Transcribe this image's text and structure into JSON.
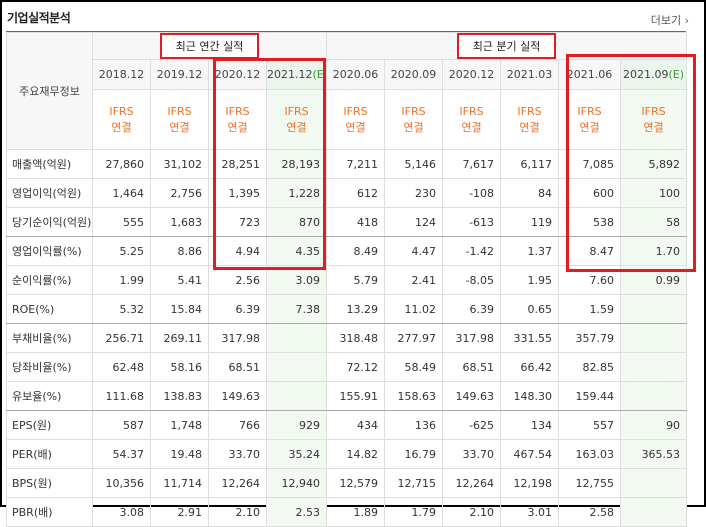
{
  "header": {
    "title": "기업실적분석",
    "more_label": "더보기"
  },
  "table": {
    "corner_label": "주요재무정보",
    "groups": [
      {
        "label": "최근 연간 실적",
        "span": 4
      },
      {
        "label": "최근 분기 실적",
        "span": 6
      }
    ],
    "periods": [
      {
        "label": "2018.12",
        "est": ""
      },
      {
        "label": "2019.12",
        "est": ""
      },
      {
        "label": "2020.12",
        "est": ""
      },
      {
        "label": "2021.12",
        "est": "(E)"
      },
      {
        "label": "2020.06",
        "est": ""
      },
      {
        "label": "2020.09",
        "est": ""
      },
      {
        "label": "2020.12",
        "est": ""
      },
      {
        "label": "2021.03",
        "est": ""
      },
      {
        "label": "2021.06",
        "est": ""
      },
      {
        "label": "2021.09",
        "est": "(E)"
      }
    ],
    "ifrs_label": "IFRS",
    "consol_label": "연결",
    "rows": [
      {
        "label": "매출액(억원)",
        "values": [
          "27,860",
          "31,102",
          "28,251",
          "28,193",
          "7,211",
          "5,146",
          "7,617",
          "6,117",
          "7,085",
          "5,892"
        ],
        "end": false
      },
      {
        "label": "영업이익(억원)",
        "values": [
          "1,464",
          "2,756",
          "1,395",
          "1,228",
          "612",
          "230",
          "-108",
          "84",
          "600",
          "100"
        ],
        "end": false
      },
      {
        "label": "당기순이익(억원)",
        "values": [
          "555",
          "1,683",
          "723",
          "870",
          "418",
          "124",
          "-613",
          "119",
          "538",
          "58"
        ],
        "end": true
      },
      {
        "label": "영업이익률(%)",
        "values": [
          "5.25",
          "8.86",
          "4.94",
          "4.35",
          "8.49",
          "4.47",
          "-1.42",
          "1.37",
          "8.47",
          "1.70"
        ],
        "end": false
      },
      {
        "label": "순이익률(%)",
        "values": [
          "1.99",
          "5.41",
          "2.56",
          "3.09",
          "5.79",
          "2.41",
          "-8.05",
          "1.95",
          "7.60",
          "0.99"
        ],
        "end": false
      },
      {
        "label": "ROE(%)",
        "values": [
          "5.32",
          "15.84",
          "6.39",
          "7.38",
          "13.29",
          "11.02",
          "6.39",
          "0.65",
          "1.59",
          ""
        ],
        "end": true
      },
      {
        "label": "부채비율(%)",
        "values": [
          "256.71",
          "269.11",
          "317.98",
          "",
          "318.48",
          "277.97",
          "317.98",
          "331.55",
          "357.79",
          ""
        ],
        "end": false
      },
      {
        "label": "당좌비율(%)",
        "values": [
          "62.48",
          "58.16",
          "68.51",
          "",
          "72.12",
          "58.49",
          "68.51",
          "66.42",
          "82.85",
          ""
        ],
        "end": false
      },
      {
        "label": "유보율(%)",
        "values": [
          "111.68",
          "138.83",
          "149.63",
          "",
          "155.91",
          "158.63",
          "149.63",
          "148.30",
          "159.44",
          ""
        ],
        "end": true
      },
      {
        "label": "EPS(원)",
        "values": [
          "587",
          "1,748",
          "766",
          "929",
          "434",
          "136",
          "-625",
          "134",
          "557",
          "90"
        ],
        "end": false
      },
      {
        "label": "PER(배)",
        "values": [
          "54.37",
          "19.48",
          "33.70",
          "35.24",
          "14.82",
          "16.79",
          "33.70",
          "467.54",
          "163.03",
          "365.53"
        ],
        "end": false
      },
      {
        "label": "BPS(원)",
        "values": [
          "10,356",
          "11,714",
          "12,264",
          "12,940",
          "12,579",
          "12,715",
          "12,264",
          "12,198",
          "12,755",
          ""
        ],
        "end": false
      },
      {
        "label": "PBR(배)",
        "values": [
          "3.08",
          "2.91",
          "2.10",
          "2.53",
          "1.89",
          "1.79",
          "2.10",
          "3.01",
          "2.58",
          ""
        ],
        "end": false
      }
    ]
  },
  "colors": {
    "highlight_red": "#e31b23",
    "ifrs_orange": "#e8722a",
    "estimate_bg": "#f1f9f1",
    "negative": "#e4252a"
  }
}
